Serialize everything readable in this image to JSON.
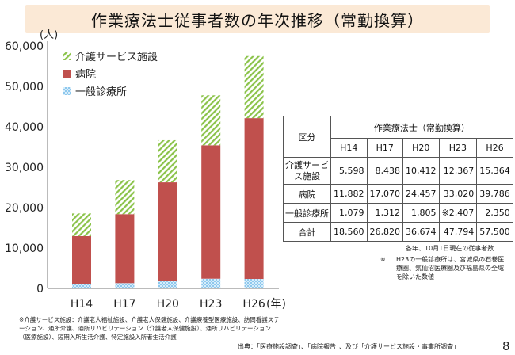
{
  "title": "作業療法士従事者数の年次推移（常勤換算）",
  "chart_data": {
    "type": "bar",
    "stacked": true,
    "unit_label": "(人)",
    "categories": [
      "H14",
      "H17",
      "H20",
      "H23",
      "H26"
    ],
    "x_unit": "(年)",
    "ylim": [
      0,
      60000
    ],
    "yticks": [
      "0",
      "10,000",
      "20,000",
      "30,000",
      "40,000",
      "50,000",
      "60,000"
    ],
    "grid": false,
    "legend_position": "top-left",
    "series": [
      {
        "name": "一般診療所",
        "values": [
          1079,
          1312,
          1805,
          2407,
          2350
        ],
        "color": "#8ec9ee",
        "pattern": "dots"
      },
      {
        "name": "病院",
        "values": [
          11882,
          17070,
          24457,
          33020,
          39786
        ],
        "color": "#c0504d",
        "pattern": "solid"
      },
      {
        "name": "介護サービス施設",
        "values": [
          5598,
          8438,
          10412,
          12367,
          15364
        ],
        "color": "#8bc34a",
        "pattern": "diagonal"
      }
    ],
    "legend_order": [
      "介護サービス施設",
      "病院",
      "一般診療所"
    ]
  },
  "table": {
    "corner_label": "区分",
    "group_header": "作業療法士（常勤換算）",
    "columns": [
      "H14",
      "H17",
      "H20",
      "H23",
      "H26"
    ],
    "rows": [
      {
        "label": "介護サービス施設",
        "values": [
          "5,598",
          "8,438",
          "10,412",
          "12,367",
          "15,364"
        ]
      },
      {
        "label": "病院",
        "values": [
          "11,882",
          "17,070",
          "24,457",
          "33,020",
          "39,786"
        ]
      },
      {
        "label": "一般診療所",
        "values": [
          "1,079",
          "1,312",
          "1,805",
          "※2,407",
          "2,350"
        ]
      },
      {
        "label": "合計",
        "values": [
          "18,560",
          "26,820",
          "36,674",
          "47,794",
          "57,500"
        ]
      }
    ]
  },
  "table_note": "各年、10月1日現在の従事者数",
  "note_mark": "※",
  "note_text": "H23の一般診療所は、宮城県の石巻医療圏、気仙沼医療圏及び福島県の全域を除いた数値",
  "footnote": "※介護サービス施設：介護老人福祉施設、介護老人保健施設、介護療養型医療施設、訪問看護ステーション、通所介護、通所リハビリテーション（介護老人保健施設）、通所リハビリテーション（医療施設）、短期入所生活介護、特定施設入所者生活介護",
  "source": "出典：「医療施設調査」、「病院報告」、及び「介護サービス施設・事業所調査」",
  "page_number": "8"
}
